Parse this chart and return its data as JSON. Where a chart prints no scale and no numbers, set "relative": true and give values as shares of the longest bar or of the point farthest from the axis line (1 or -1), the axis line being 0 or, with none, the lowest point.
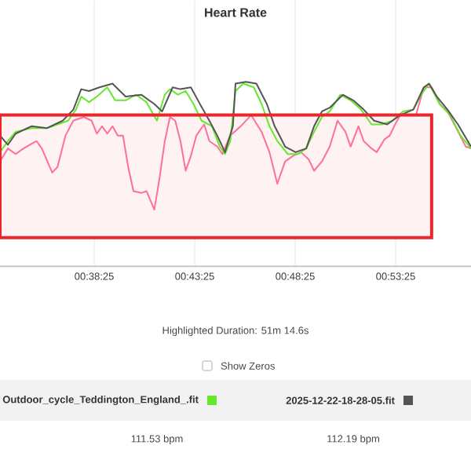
{
  "chart_data": {
    "type": "line",
    "title": "Heart Rate",
    "relative": true,
    "xlim": [
      33.73,
      57.17
    ],
    "xticks": [
      {
        "value": 38.42,
        "label": "00:38:25"
      },
      {
        "value": 43.42,
        "label": "00:43:25"
      },
      {
        "value": 48.42,
        "label": "00:48:25"
      },
      {
        "value": 53.42,
        "label": "00:53:25"
      }
    ],
    "grid": "x",
    "legend": "bottom",
    "marker": "none",
    "line_style": "solid",
    "bands": [
      {
        "axis": "x",
        "from": 33.73,
        "to": 55.21
      }
    ],
    "annotations": [
      "Highlighted Duration: 51m 14.6s",
      "Show Zeros",
      "111.53 bpm",
      "112.19 bpm"
    ],
    "series": [
      {
        "color": "#ff6f9a",
        "x": [
          33.73,
          34.12,
          34.51,
          34.9,
          35.55,
          35.81,
          36.33,
          36.59,
          36.99,
          37.38,
          37.9,
          38.29,
          38.55,
          38.81,
          39.07,
          39.33,
          39.59,
          39.85,
          40.11,
          40.37,
          40.76,
          41.02,
          41.41,
          41.67,
          41.93,
          42.19,
          42.45,
          42.71,
          42.97,
          43.23,
          43.5,
          43.89,
          44.15,
          44.54,
          44.8,
          45.19,
          45.71,
          46.23,
          46.75,
          47.14,
          47.53,
          47.92,
          48.31,
          48.71,
          49.1,
          49.36,
          49.75,
          50.14,
          50.53,
          50.92,
          51.18,
          51.57,
          51.83,
          52.22,
          52.48,
          52.87,
          53.13,
          53.39,
          53.65,
          54.43,
          54.82,
          55.22,
          55.61,
          56.0,
          56.39,
          56.91,
          57.17
        ],
        "values": [
          0.57,
          0.64,
          0.61,
          0.64,
          0.68,
          0.64,
          0.51,
          0.54,
          0.71,
          0.79,
          0.81,
          0.79,
          0.72,
          0.76,
          0.72,
          0.76,
          0.71,
          0.71,
          0.54,
          0.41,
          0.4,
          0.41,
          0.31,
          0.48,
          0.68,
          0.81,
          0.79,
          0.68,
          0.52,
          0.6,
          0.71,
          0.77,
          0.68,
          0.65,
          0.61,
          0.71,
          0.76,
          0.82,
          0.73,
          0.62,
          0.45,
          0.57,
          0.6,
          0.62,
          0.58,
          0.52,
          0.57,
          0.65,
          0.79,
          0.73,
          0.65,
          0.76,
          0.68,
          0.64,
          0.62,
          0.69,
          0.71,
          0.77,
          0.82,
          0.82,
          0.97,
          0.97,
          0.88,
          0.84,
          0.76,
          0.65,
          0.64
        ]
      },
      {
        "name": "Outdoor_cycle_Teddington_England_.fit",
        "color": "#66e82e",
        "x": [
          33.73,
          34.12,
          34.51,
          35.29,
          36.07,
          36.59,
          37.12,
          37.51,
          37.77,
          38.16,
          38.55,
          39.07,
          39.46,
          39.98,
          40.5,
          41.02,
          41.54,
          41.93,
          42.19,
          42.58,
          42.97,
          43.36,
          43.76,
          44.28,
          44.67,
          44.93,
          45.19,
          45.45,
          45.84,
          46.36,
          46.75,
          47.14,
          47.53,
          48.05,
          48.57,
          48.97,
          49.36,
          49.75,
          50.14,
          50.66,
          51.18,
          51.7,
          52.22,
          52.74,
          53.26,
          53.78,
          54.3,
          54.69,
          55.08,
          55.61,
          56.13,
          56.65,
          57.17
        ],
        "values": [
          0.62,
          0.68,
          0.73,
          0.75,
          0.75,
          0.77,
          0.79,
          0.85,
          0.92,
          0.89,
          0.92,
          0.97,
          0.9,
          0.9,
          0.93,
          0.89,
          0.79,
          0.93,
          0.96,
          0.93,
          0.95,
          0.88,
          0.79,
          0.76,
          0.65,
          0.61,
          0.68,
          0.95,
          0.99,
          0.97,
          0.88,
          0.76,
          0.68,
          0.61,
          0.61,
          0.64,
          0.73,
          0.81,
          0.84,
          0.93,
          0.9,
          0.85,
          0.77,
          0.77,
          0.79,
          0.84,
          0.85,
          0.93,
          0.99,
          0.88,
          0.82,
          0.71,
          0.64
        ]
      },
      {
        "name": "2025-12-22-18-28-05.fit",
        "color": "#555555",
        "x": [
          33.73,
          34.12,
          34.51,
          35.29,
          36.07,
          36.85,
          37.38,
          37.77,
          38.16,
          38.68,
          39.33,
          39.98,
          40.76,
          41.41,
          41.8,
          42.32,
          42.71,
          43.23,
          43.63,
          44.15,
          44.54,
          44.93,
          45.32,
          45.45,
          45.97,
          46.49,
          47.01,
          47.4,
          47.92,
          48.44,
          48.97,
          49.36,
          49.75,
          50.14,
          50.79,
          51.31,
          51.83,
          52.35,
          53.0,
          53.65,
          54.3,
          54.82,
          55.08,
          55.47,
          56.0,
          56.52,
          57.17
        ],
        "values": [
          0.71,
          0.66,
          0.72,
          0.76,
          0.75,
          0.79,
          0.85,
          0.96,
          0.95,
          0.97,
          0.99,
          0.92,
          0.93,
          0.88,
          0.84,
          0.97,
          0.96,
          0.97,
          0.89,
          0.79,
          0.71,
          0.62,
          0.76,
          0.99,
          1.0,
          0.99,
          0.88,
          0.76,
          0.65,
          0.62,
          0.64,
          0.76,
          0.84,
          0.86,
          0.93,
          0.9,
          0.85,
          0.79,
          0.77,
          0.82,
          0.85,
          0.97,
          0.99,
          0.92,
          0.85,
          0.77,
          0.65
        ]
      }
    ]
  }
}
